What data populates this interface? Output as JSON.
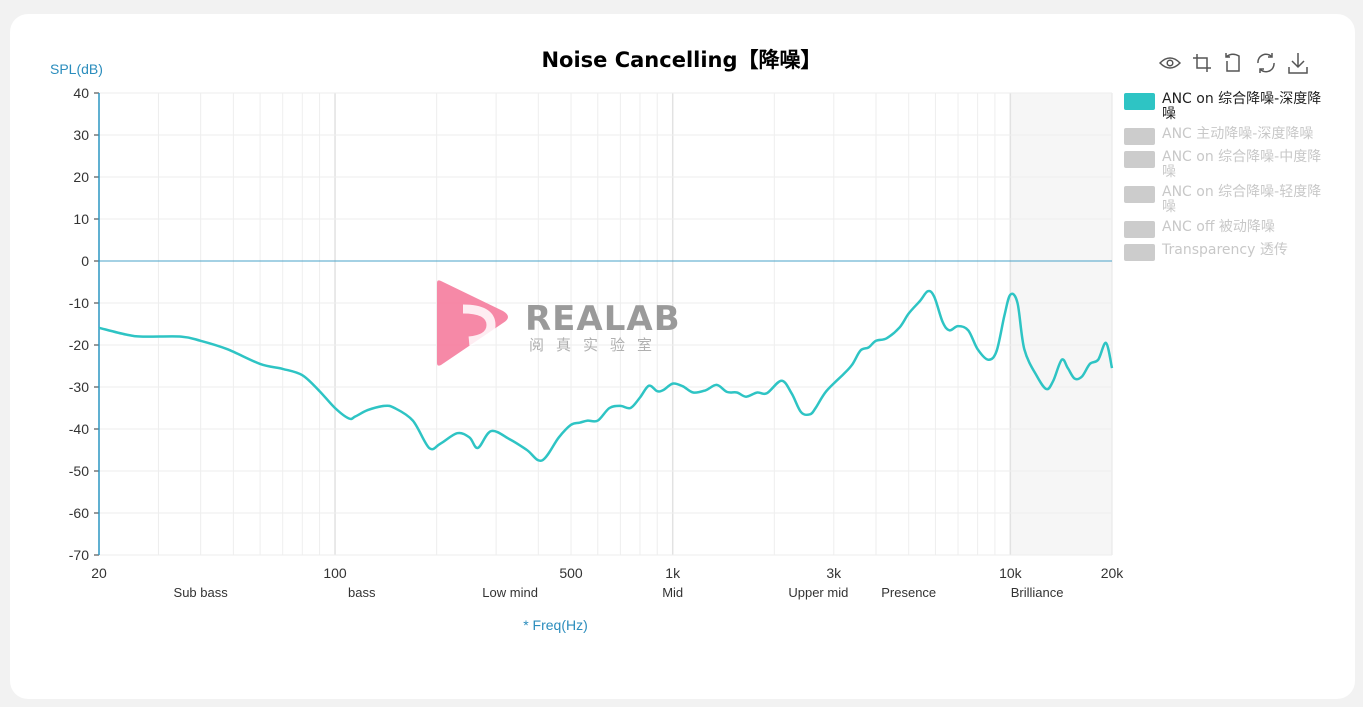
{
  "title": "Noise Cancelling【降噪】",
  "toolbar": {
    "icons": [
      "eye-icon",
      "crop-icon",
      "restore-icon",
      "refresh-icon",
      "download-icon"
    ]
  },
  "watermark": {
    "text": "REALAB",
    "sub": "阅真实验室"
  },
  "chart_data": {
    "type": "line",
    "title": "Noise Cancelling【降噪】",
    "xlabel": "* Freq(Hz)",
    "ylabel": "SPL(dB)",
    "x_scale": "log",
    "xlim": [
      20,
      20000
    ],
    "ylim": [
      -70,
      40
    ],
    "yticks": [
      -70,
      -60,
      -50,
      -40,
      -30,
      -20,
      -10,
      0,
      10,
      20,
      30,
      40
    ],
    "xticks": [
      {
        "value": 20,
        "label": "20"
      },
      {
        "value": 100,
        "label": "100"
      },
      {
        "value": 500,
        "label": "500"
      },
      {
        "value": 1000,
        "label": "1k"
      },
      {
        "value": 3000,
        "label": "3k"
      },
      {
        "value": 10000,
        "label": "10k"
      },
      {
        "value": 20000,
        "label": "20k"
      }
    ],
    "bands": [
      {
        "label": "Sub bass",
        "freq": 40
      },
      {
        "label": "bass",
        "freq": 120
      },
      {
        "label": "Low mind",
        "freq": 330
      },
      {
        "label": "Mid",
        "freq": 1000
      },
      {
        "label": "Upper mid",
        "freq": 2700
      },
      {
        "label": "Presence",
        "freq": 5000
      },
      {
        "label": "Brilliance",
        "freq": 12000
      }
    ],
    "shaded_region": [
      10000,
      20000
    ],
    "grid": true,
    "legend_position": "right",
    "reference_line": 0,
    "series": [
      {
        "name": "ANC on 综合降噪-深度降噪",
        "visible": true,
        "color": "#2ec4c4",
        "points": [
          [
            20,
            -15.9
          ],
          [
            24,
            -17.5
          ],
          [
            27,
            -18.0
          ],
          [
            35,
            -18.0
          ],
          [
            40,
            -19.0
          ],
          [
            48,
            -21.0
          ],
          [
            60,
            -24.5
          ],
          [
            70,
            -25.7
          ],
          [
            80,
            -27.2
          ],
          [
            90,
            -31.0
          ],
          [
            100,
            -35.0
          ],
          [
            110,
            -37.5
          ],
          [
            115,
            -37.0
          ],
          [
            125,
            -35.5
          ],
          [
            140,
            -34.5
          ],
          [
            150,
            -35.0
          ],
          [
            170,
            -38.0
          ],
          [
            190,
            -44.5
          ],
          [
            205,
            -43.5
          ],
          [
            230,
            -41.0
          ],
          [
            250,
            -42.0
          ],
          [
            265,
            -44.5
          ],
          [
            290,
            -40.5
          ],
          [
            330,
            -42.5
          ],
          [
            370,
            -45.0
          ],
          [
            410,
            -47.5
          ],
          [
            460,
            -42.0
          ],
          [
            500,
            -39.0
          ],
          [
            530,
            -38.5
          ],
          [
            560,
            -38.0
          ],
          [
            600,
            -38.0
          ],
          [
            650,
            -35.0
          ],
          [
            700,
            -34.5
          ],
          [
            750,
            -35.0
          ],
          [
            800,
            -32.5
          ],
          [
            850,
            -29.7
          ],
          [
            900,
            -31.0
          ],
          [
            940,
            -30.7
          ],
          [
            1000,
            -29.2
          ],
          [
            1070,
            -29.8
          ],
          [
            1150,
            -31.3
          ],
          [
            1250,
            -30.8
          ],
          [
            1350,
            -29.5
          ],
          [
            1450,
            -31.2
          ],
          [
            1550,
            -31.3
          ],
          [
            1650,
            -32.3
          ],
          [
            1780,
            -31.3
          ],
          [
            1900,
            -31.5
          ],
          [
            2100,
            -28.5
          ],
          [
            2250,
            -31.5
          ],
          [
            2400,
            -36.0
          ],
          [
            2550,
            -36.5
          ],
          [
            2650,
            -35.0
          ],
          [
            2850,
            -31.0
          ],
          [
            3200,
            -27.0
          ],
          [
            3400,
            -24.7
          ],
          [
            3600,
            -21.3
          ],
          [
            3800,
            -20.6
          ],
          [
            4000,
            -19.0
          ],
          [
            4300,
            -18.4
          ],
          [
            4700,
            -15.8
          ],
          [
            5000,
            -12.5
          ],
          [
            5400,
            -9.5
          ],
          [
            5700,
            -7.2
          ],
          [
            5950,
            -8.5
          ],
          [
            6300,
            -14.5
          ],
          [
            6600,
            -16.5
          ],
          [
            7000,
            -15.5
          ],
          [
            7500,
            -16.5
          ],
          [
            8000,
            -21.0
          ],
          [
            8600,
            -23.5
          ],
          [
            9100,
            -21.5
          ],
          [
            9600,
            -13.0
          ],
          [
            10000,
            -8.0
          ],
          [
            10500,
            -10.0
          ],
          [
            11000,
            -21.0
          ],
          [
            12000,
            -27.5
          ],
          [
            12800,
            -30.5
          ],
          [
            13400,
            -28.5
          ],
          [
            14200,
            -23.5
          ],
          [
            14800,
            -25.5
          ],
          [
            15500,
            -28.0
          ],
          [
            16300,
            -27.5
          ],
          [
            17200,
            -24.5
          ],
          [
            18200,
            -23.5
          ],
          [
            19200,
            -19.5
          ],
          [
            20000,
            -25.5
          ]
        ]
      },
      {
        "name": "ANC 主动降噪-深度降噪",
        "visible": false,
        "color": "#cccccc"
      },
      {
        "name": "ANC on 综合降噪-中度降噪",
        "visible": false,
        "color": "#cccccc"
      },
      {
        "name": "ANC on 综合降噪-轻度降噪",
        "visible": false,
        "color": "#cccccc"
      },
      {
        "name": "ANC off 被动降噪",
        "visible": false,
        "color": "#cccccc"
      },
      {
        "name": "Transparency 透传",
        "visible": false,
        "color": "#cccccc"
      }
    ]
  }
}
